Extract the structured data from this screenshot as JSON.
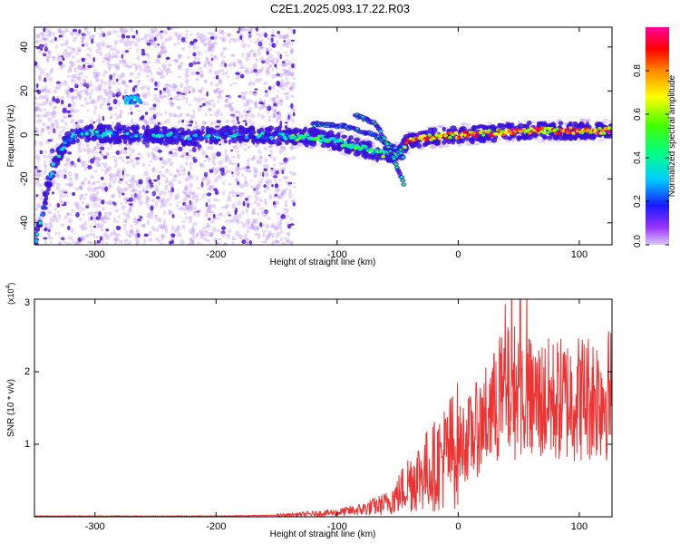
{
  "title": "C2E1.2025.093.17.22.R03",
  "colors": {
    "axis": "#000000",
    "snr_line": "#ee3333",
    "speckle": "#7a33e0"
  },
  "chart_data": [
    {
      "type": "heatmap",
      "name": "spectrogram",
      "xlabel": "Height of straight line (km)",
      "ylabel": "Frequency (Hz)",
      "xlim": [
        -350,
        127
      ],
      "ylim": [
        -50,
        49
      ],
      "xticks": [
        -300,
        -200,
        -100,
        0,
        100
      ],
      "xtick_labels": [
        "-300",
        "-200",
        "-100",
        "0",
        "100"
      ],
      "yticks": [
        -40,
        -20,
        0,
        20,
        40
      ],
      "ytick_labels": [
        "-40",
        "-20",
        "0",
        "20",
        "40"
      ],
      "noise_region_x": [
        -350,
        -135
      ],
      "signal_trace": [
        [
          -350,
          -50
        ],
        [
          -345,
          -40
        ],
        [
          -340,
          -25
        ],
        [
          -333,
          -12
        ],
        [
          -326,
          -5
        ],
        [
          -318,
          0
        ],
        [
          -300,
          1
        ],
        [
          -280,
          0
        ],
        [
          -250,
          0
        ],
        [
          -220,
          -1
        ],
        [
          -190,
          0
        ],
        [
          -160,
          0
        ],
        [
          -140,
          -1
        ],
        [
          -120,
          -1
        ],
        [
          -100,
          -3
        ],
        [
          -80,
          -6
        ],
        [
          -60,
          -9
        ],
        [
          -48,
          -8
        ],
        [
          -40,
          -2
        ],
        [
          -20,
          -1
        ],
        [
          0,
          0
        ],
        [
          30,
          1
        ],
        [
          60,
          2
        ],
        [
          100,
          2
        ],
        [
          127,
          2
        ]
      ],
      "upper_branch": [
        [
          -120,
          5
        ],
        [
          -95,
          4
        ],
        [
          -70,
          0
        ],
        [
          -55,
          -5
        ],
        [
          -45,
          -10
        ]
      ],
      "arc_branch": [
        [
          -85,
          9
        ],
        [
          -68,
          5
        ],
        [
          -58,
          -5
        ],
        [
          -50,
          -15
        ],
        [
          -45,
          -22
        ]
      ],
      "blob": [
        [
          -275,
          16
        ],
        [
          -262,
          16
        ]
      ],
      "colorbar": {
        "label": "Normalized spectral amplitude",
        "ticks": [
          0.0,
          0.2,
          0.4,
          0.6,
          0.8
        ],
        "tick_labels": [
          "0.0",
          "0.2",
          "0.4",
          "0.6",
          "0.8"
        ],
        "range": [
          0,
          1
        ]
      }
    },
    {
      "type": "line",
      "name": "snr",
      "xlabel": "Height of straight line (km)",
      "ylabel": "SNR (10 * v/v)",
      "multiplier_label": "(x10",
      "multiplier_exp": "4",
      "multiplier_close": ")",
      "xlim": [
        -350,
        127
      ],
      "ylim": [
        0,
        3
      ],
      "xticks": [
        -300,
        -200,
        -100,
        0,
        100
      ],
      "xtick_labels": [
        "-300",
        "-200",
        "-100",
        "0",
        "100"
      ],
      "yticks": [
        1,
        2,
        3
      ],
      "ytick_labels": [
        "1",
        "2",
        "3"
      ],
      "envelope": [
        [
          -350,
          0.01
        ],
        [
          -200,
          0.01
        ],
        [
          -150,
          0.02
        ],
        [
          -120,
          0.04
        ],
        [
          -100,
          0.06
        ],
        [
          -80,
          0.1
        ],
        [
          -60,
          0.18
        ],
        [
          -50,
          0.3
        ],
        [
          -40,
          0.5
        ],
        [
          -30,
          0.6
        ],
        [
          -20,
          0.7
        ],
        [
          -10,
          0.85
        ],
        [
          0,
          1.0
        ],
        [
          10,
          1.1
        ],
        [
          20,
          1.3
        ],
        [
          30,
          1.5
        ],
        [
          40,
          1.7
        ],
        [
          50,
          1.75
        ],
        [
          60,
          1.6
        ],
        [
          80,
          1.6
        ],
        [
          100,
          1.65
        ],
        [
          127,
          1.7
        ]
      ]
    }
  ]
}
